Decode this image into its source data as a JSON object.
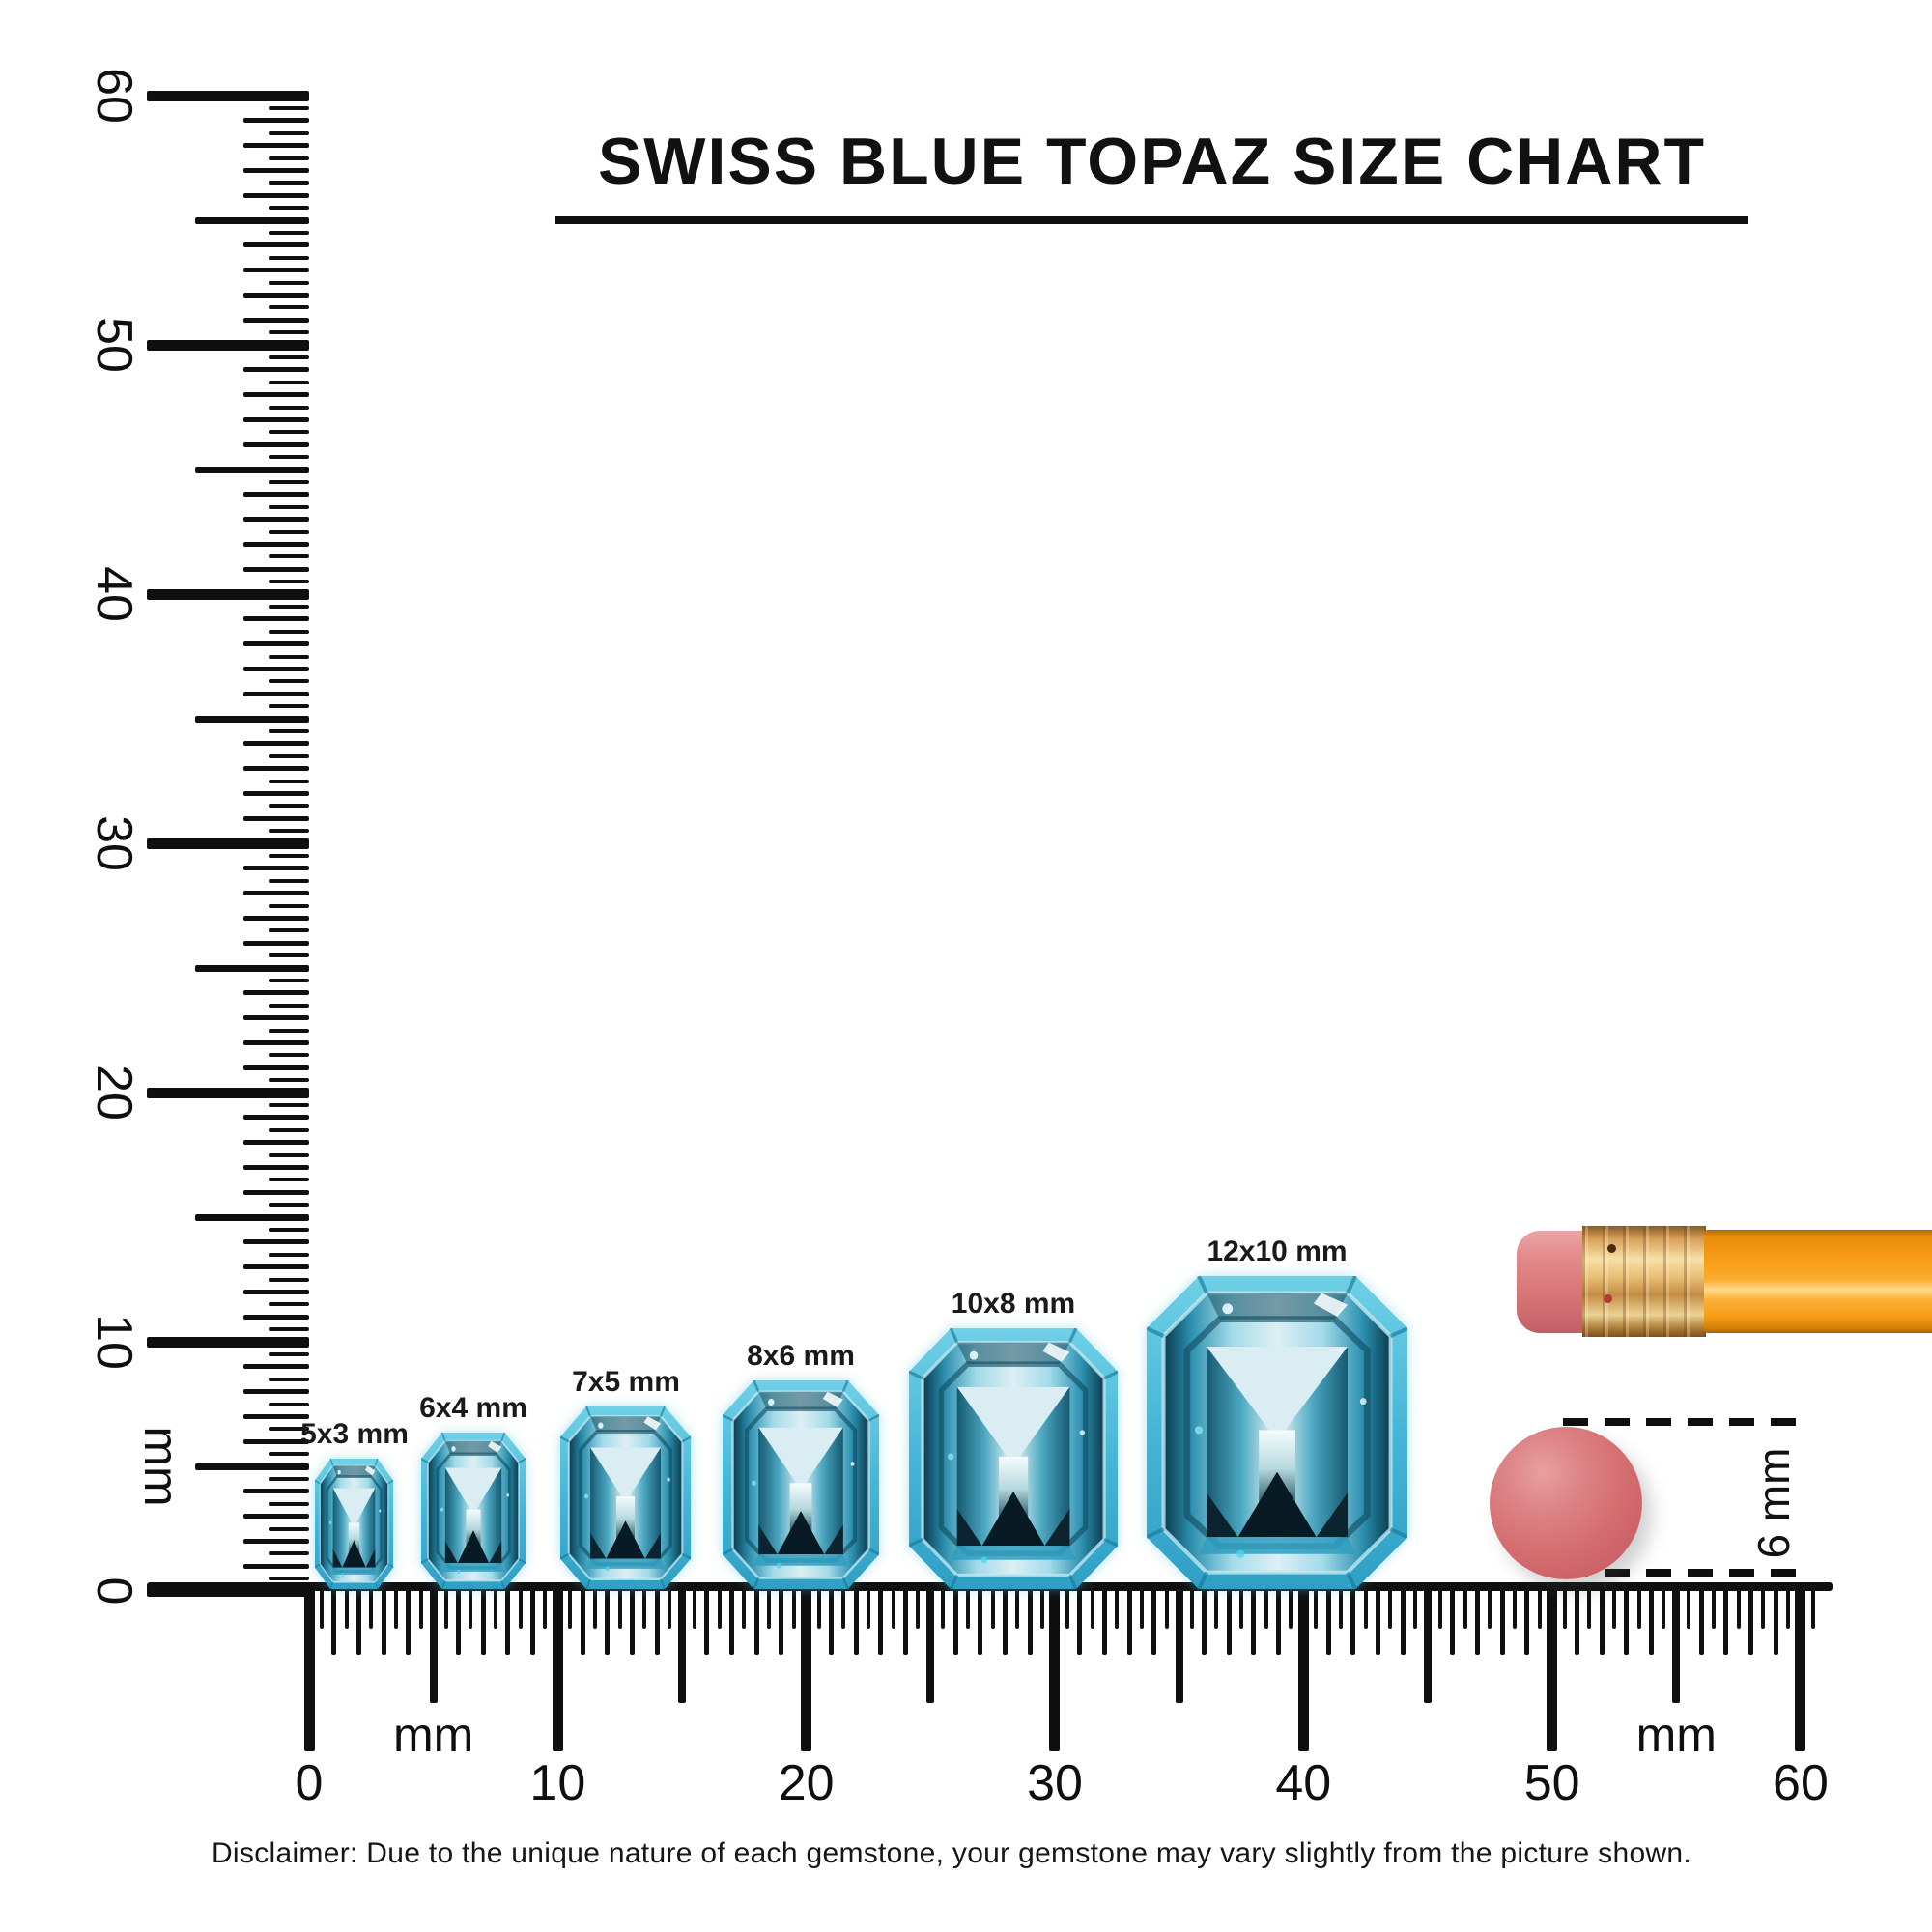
{
  "title": "SWISS BLUE TOPAZ SIZE CHART",
  "rulers": {
    "vertical": {
      "numbers": [
        "60",
        "50",
        "40",
        "30",
        "20",
        "10",
        "0"
      ],
      "unit": "mm",
      "range_mm": [
        0,
        60
      ]
    },
    "horizontal": {
      "numbers": [
        "0",
        "10",
        "20",
        "30",
        "40",
        "50",
        "60"
      ],
      "unit_left": "mm",
      "unit_right": "mm",
      "range_mm": [
        0,
        60
      ]
    }
  },
  "gems": [
    {
      "label": "5x3 mm",
      "width_mm": 3,
      "height_mm": 5
    },
    {
      "label": "6x4 mm",
      "width_mm": 4,
      "height_mm": 6
    },
    {
      "label": "7x5 mm",
      "width_mm": 5,
      "height_mm": 7
    },
    {
      "label": "8x6 mm",
      "width_mm": 6,
      "height_mm": 8
    },
    {
      "label": "10x8 mm",
      "width_mm": 8,
      "height_mm": 10
    },
    {
      "label": "12x10 mm",
      "width_mm": 10,
      "height_mm": 12
    }
  ],
  "reference": {
    "diameter_label": "6 mm",
    "diameter_mm": 6
  },
  "disclaimer": "Disclaimer: Due to the unique nature of each gemstone, your gemstone may vary slightly from the picture shown.",
  "colors": {
    "ink": "#0f0f0f",
    "gem_rim": "#45b6d8",
    "gem_dark": "#0c3a4e",
    "gem_light": "#ddeff4",
    "eraser_pink": "#d46d70",
    "pencil_orange": "#f89c17",
    "ferrule_gold": "#e9bf76"
  }
}
